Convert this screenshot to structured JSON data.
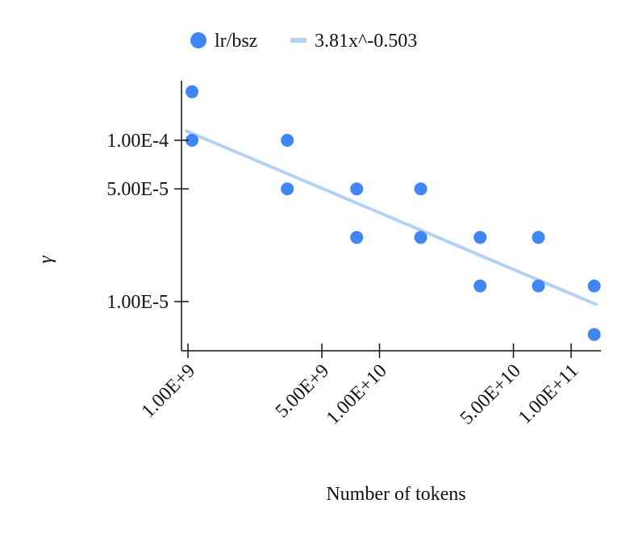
{
  "chart_data": {
    "type": "scatter",
    "title": "",
    "xlabel": "Number of tokens",
    "ylabel": "γ",
    "x_scale": "log",
    "y_scale": "log",
    "xlim": [
      1000000000.0,
      140000000000.0
    ],
    "ylim": [
      6e-06,
      0.00021
    ],
    "x_ticks": [
      {
        "value": 1000000000.0,
        "label": "1.00E+9"
      },
      {
        "value": 5000000000.0,
        "label": "5.00E+9"
      },
      {
        "value": 10000000000.0,
        "label": "1.00E+10"
      },
      {
        "value": 50000000000.0,
        "label": "5.00E+10"
      },
      {
        "value": 100000000000.0,
        "label": "1.00E+11"
      }
    ],
    "y_ticks": [
      {
        "value": 0.0001,
        "label": "1.00E-4"
      },
      {
        "value": 5e-05,
        "label": "5.00E-5"
      },
      {
        "value": 1e-05,
        "label": "1.00E-5"
      }
    ],
    "legend_position": "top-center",
    "series": [
      {
        "name": "lr/bsz",
        "kind": "scatter",
        "color": "#4285f4",
        "points": [
          {
            "x": 1050000000.0,
            "y": 0.0002
          },
          {
            "x": 1050000000.0,
            "y": 0.0001
          },
          {
            "x": 3300000000.0,
            "y": 0.0001
          },
          {
            "x": 3300000000.0,
            "y": 5e-05
          },
          {
            "x": 7600000000.0,
            "y": 5e-05
          },
          {
            "x": 7600000000.0,
            "y": 2.5e-05
          },
          {
            "x": 16400000000.0,
            "y": 5e-05
          },
          {
            "x": 16400000000.0,
            "y": 2.5e-05
          },
          {
            "x": 33500000000.0,
            "y": 2.5e-05
          },
          {
            "x": 33500000000.0,
            "y": 1.25e-05
          },
          {
            "x": 67500000000.0,
            "y": 2.5e-05
          },
          {
            "x": 67500000000.0,
            "y": 1.25e-05
          },
          {
            "x": 132000000000.0,
            "y": 1.25e-05
          },
          {
            "x": 132000000000.0,
            "y": 6.25e-06
          }
        ]
      },
      {
        "name": "3.81x^-0.503",
        "kind": "line",
        "color": "#b3d0f5",
        "coefficient": 3.81,
        "exponent": -0.503,
        "x_range": [
          970000000.0,
          137000000000.0
        ]
      }
    ]
  }
}
